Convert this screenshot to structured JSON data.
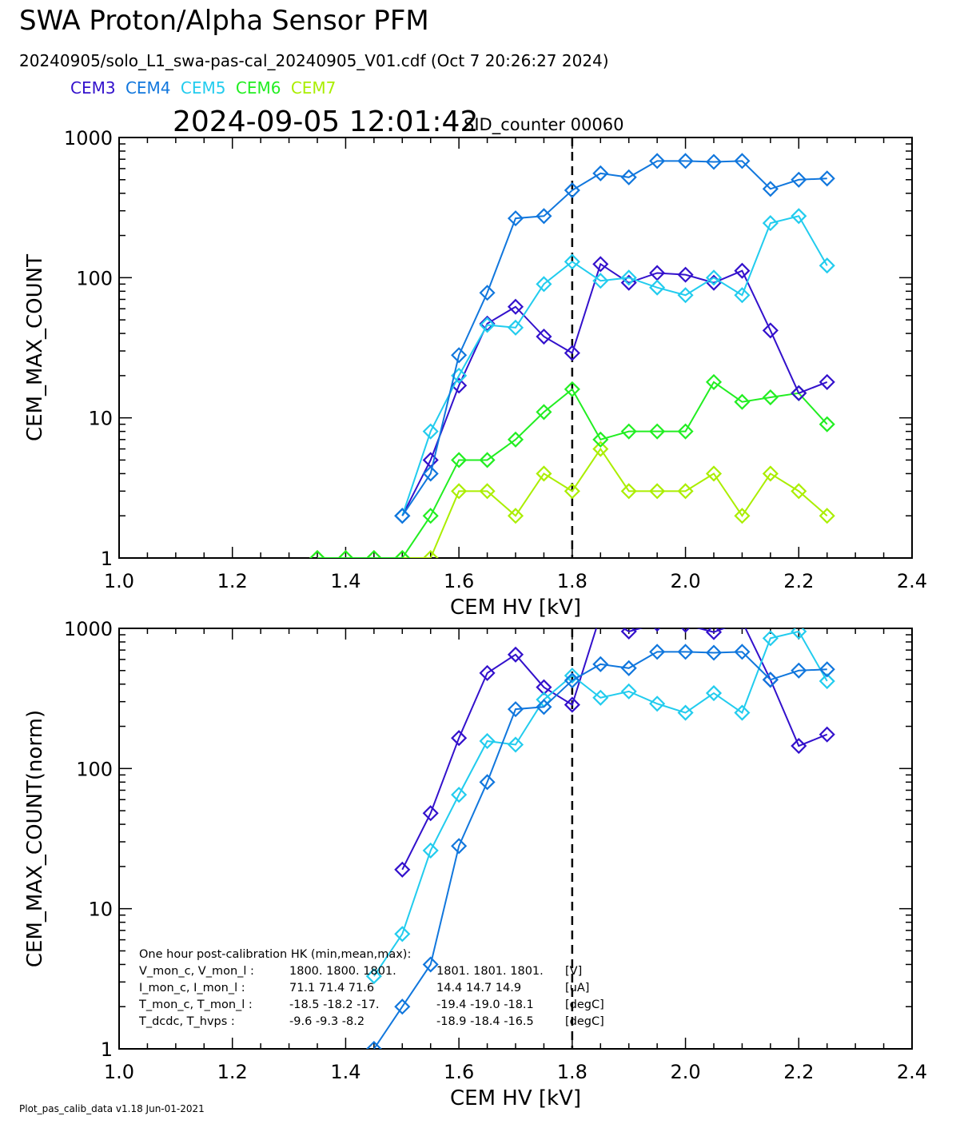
{
  "header": {
    "title": "SWA Proton/Alpha Sensor PFM",
    "subtitle": "20240905/solo_L1_swa-pas-cal_20240905_V01.cdf  (Oct  7 20:26:27 2024)",
    "timestamp": "2024-09-05 12:01:42",
    "sid_counter": "SID_counter 00060",
    "footer": "Plot_pas_calib_data v1.18 Jun-01-2021"
  },
  "legend": [
    {
      "name": "CEM3",
      "color": "#3311cc"
    },
    {
      "name": "CEM4",
      "color": "#1177dd"
    },
    {
      "name": "CEM5",
      "color": "#22ccee"
    },
    {
      "name": "CEM6",
      "color": "#22ee22"
    },
    {
      "name": "CEM7",
      "color": "#aaee00"
    }
  ],
  "hk": {
    "title": "One hour post-calibration HK (min,mean,max):",
    "rows": [
      {
        "label": "V_mon_c, V_mon_l :",
        "c": "1800.  1800.  1801.",
        "l": "1801.  1801.  1801.",
        "unit": "[V]"
      },
      {
        "label": "I_mon_c,  I_mon_l :",
        "c": "71.1   71.4   71.6",
        "l": "14.4   14.7   14.9",
        "unit": "[uA]"
      },
      {
        "label": "T_mon_c, T_mon_l :",
        "c": "-18.5  -18.2  -17.",
        "l": "-19.4  -19.0  -18.1",
        "unit": "[degC]"
      },
      {
        "label": "T_dcdc,    T_hvps :",
        "c": "-9.6   -9.3   -8.2",
        "l": "-18.9  -18.4  -16.5",
        "unit": "[degC]"
      }
    ]
  },
  "chart_data": [
    {
      "type": "line",
      "xlabel": "CEM HV [kV]",
      "ylabel": "CEM_MAX_COUNT",
      "xlim": [
        1.0,
        2.4
      ],
      "ylim": [
        1,
        1000
      ],
      "yscale": "log",
      "xticks": [
        "1.0",
        "1.2",
        "1.4",
        "1.6",
        "1.8",
        "2.0",
        "2.2",
        "2.4"
      ],
      "yticks": [
        {
          "value": 1,
          "label": "1"
        },
        {
          "value": 10,
          "label": "10"
        },
        {
          "value": 100,
          "label": "100"
        },
        {
          "value": 1000,
          "label": "1000"
        }
      ],
      "vline": 1.8,
      "marker": "diamond",
      "x": [
        1.35,
        1.4,
        1.45,
        1.5,
        1.55,
        1.6,
        1.65,
        1.7,
        1.75,
        1.8,
        1.85,
        1.9,
        1.95,
        2.0,
        2.05,
        2.1,
        2.15,
        2.2,
        2.25
      ],
      "series": [
        {
          "name": "CEM7",
          "color": "#aaee00",
          "values": [
            1,
            1,
            1,
            1,
            1,
            3,
            3,
            2,
            4,
            3,
            6,
            3,
            3,
            3,
            4,
            2,
            4,
            3,
            2
          ]
        },
        {
          "name": "CEM6",
          "color": "#22ee22",
          "values": [
            1,
            1,
            1,
            1,
            2,
            5,
            5,
            7,
            11,
            16,
            7,
            8,
            8,
            8,
            18,
            13,
            14,
            15,
            9
          ]
        },
        {
          "name": "CEM3",
          "color": "#3311cc",
          "values": [
            null,
            null,
            null,
            2,
            5,
            17,
            47,
            62,
            38,
            29,
            125,
            92,
            108,
            105,
            92,
            112,
            42,
            15,
            18
          ]
        },
        {
          "name": "CEM5",
          "color": "#22ccee",
          "values": [
            null,
            null,
            null,
            2,
            8,
            20,
            46,
            44,
            90,
            130,
            95,
            100,
            85,
            75,
            100,
            75,
            245,
            275,
            122
          ]
        },
        {
          "name": "CEM4",
          "color": "#1177dd",
          "values": [
            null,
            null,
            null,
            2,
            4,
            28,
            78,
            265,
            275,
            420,
            555,
            520,
            680,
            680,
            670,
            680,
            430,
            500,
            510
          ]
        }
      ]
    },
    {
      "type": "line",
      "xlabel": "CEM HV [kV]",
      "ylabel": "CEM_MAX_COUNT(norm)",
      "xlim": [
        1.0,
        2.4
      ],
      "ylim": [
        1,
        1000
      ],
      "yscale": "log",
      "xticks": [
        "1.0",
        "1.2",
        "1.4",
        "1.6",
        "1.8",
        "2.0",
        "2.2",
        "2.4"
      ],
      "yticks": [
        {
          "value": 1,
          "label": "1"
        },
        {
          "value": 10,
          "label": "10"
        },
        {
          "value": 100,
          "label": "100"
        },
        {
          "value": 1000,
          "label": "1000"
        }
      ],
      "vline": 1.8,
      "marker": "diamond",
      "x": [
        1.45,
        1.5,
        1.55,
        1.6,
        1.65,
        1.7,
        1.75,
        1.8,
        1.85,
        1.9,
        1.95,
        2.0,
        2.05,
        2.1,
        2.15,
        2.2,
        2.25
      ],
      "series": [
        {
          "name": "CEM3",
          "color": "#3311cc",
          "values": [
            null,
            19,
            48,
            165,
            480,
            650,
            380,
            285,
            1250,
            950,
            1080,
            1060,
            940,
            1120,
            430,
            145,
            175
          ]
        },
        {
          "name": "CEM5",
          "color": "#22ccee",
          "values": [
            3.3,
            6.6,
            26,
            65,
            157,
            148,
            310,
            460,
            320,
            355,
            290,
            250,
            345,
            250,
            850,
            950,
            420
          ]
        },
        {
          "name": "CEM4",
          "color": "#1177dd",
          "values": [
            1,
            2,
            4,
            28,
            80,
            265,
            275,
            425,
            555,
            520,
            680,
            680,
            670,
            680,
            430,
            500,
            510
          ]
        }
      ]
    }
  ]
}
